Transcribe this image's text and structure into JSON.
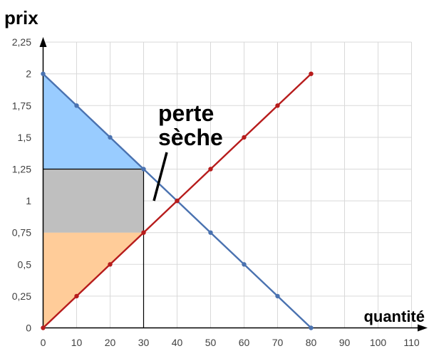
{
  "chart_data": {
    "type": "line",
    "ylabel": "prix",
    "xlabel": "quantité",
    "xlim": [
      0,
      110
    ],
    "ylim": [
      0,
      2.25
    ],
    "x_ticks": [
      "0",
      "10",
      "20",
      "30",
      "40",
      "50",
      "60",
      "70",
      "80",
      "90",
      "100",
      "110"
    ],
    "y_ticks": [
      "0",
      "0,25",
      "0,5",
      "0,75",
      "1",
      "1,25",
      "1,5",
      "1,75",
      "2",
      "2,25"
    ],
    "grid": true,
    "series": [
      {
        "color": "#4a72b0",
        "points": [
          [
            0,
            2
          ],
          [
            10,
            1.75
          ],
          [
            20,
            1.5
          ],
          [
            30,
            1.25
          ],
          [
            40,
            1
          ],
          [
            50,
            0.75
          ],
          [
            60,
            0.5
          ],
          [
            70,
            0.25
          ],
          [
            80,
            0
          ]
        ]
      },
      {
        "color": "#b71c1c",
        "points": [
          [
            0,
            0
          ],
          [
            10,
            0.25
          ],
          [
            20,
            0.5
          ],
          [
            30,
            0.75
          ],
          [
            40,
            1
          ],
          [
            50,
            1.25
          ],
          [
            60,
            1.5
          ],
          [
            70,
            1.75
          ],
          [
            80,
            2
          ]
        ]
      }
    ],
    "regions": [
      {
        "color": "#99ccff",
        "polygon": [
          [
            0,
            2
          ],
          [
            30,
            1.25
          ],
          [
            0,
            1.25
          ]
        ]
      },
      {
        "color": "#bfbfbf",
        "polygon": [
          [
            0,
            1.25
          ],
          [
            30,
            1.25
          ],
          [
            30,
            0.75
          ],
          [
            0,
            0.75
          ]
        ]
      },
      {
        "color": "#ffcc99",
        "polygon": [
          [
            0,
            0.75
          ],
          [
            30,
            0.75
          ],
          [
            0,
            0
          ]
        ]
      }
    ],
    "vertical_marker_x": 30,
    "annotations": [
      {
        "lines": [
          "perte",
          "sèche"
        ]
      }
    ]
  }
}
